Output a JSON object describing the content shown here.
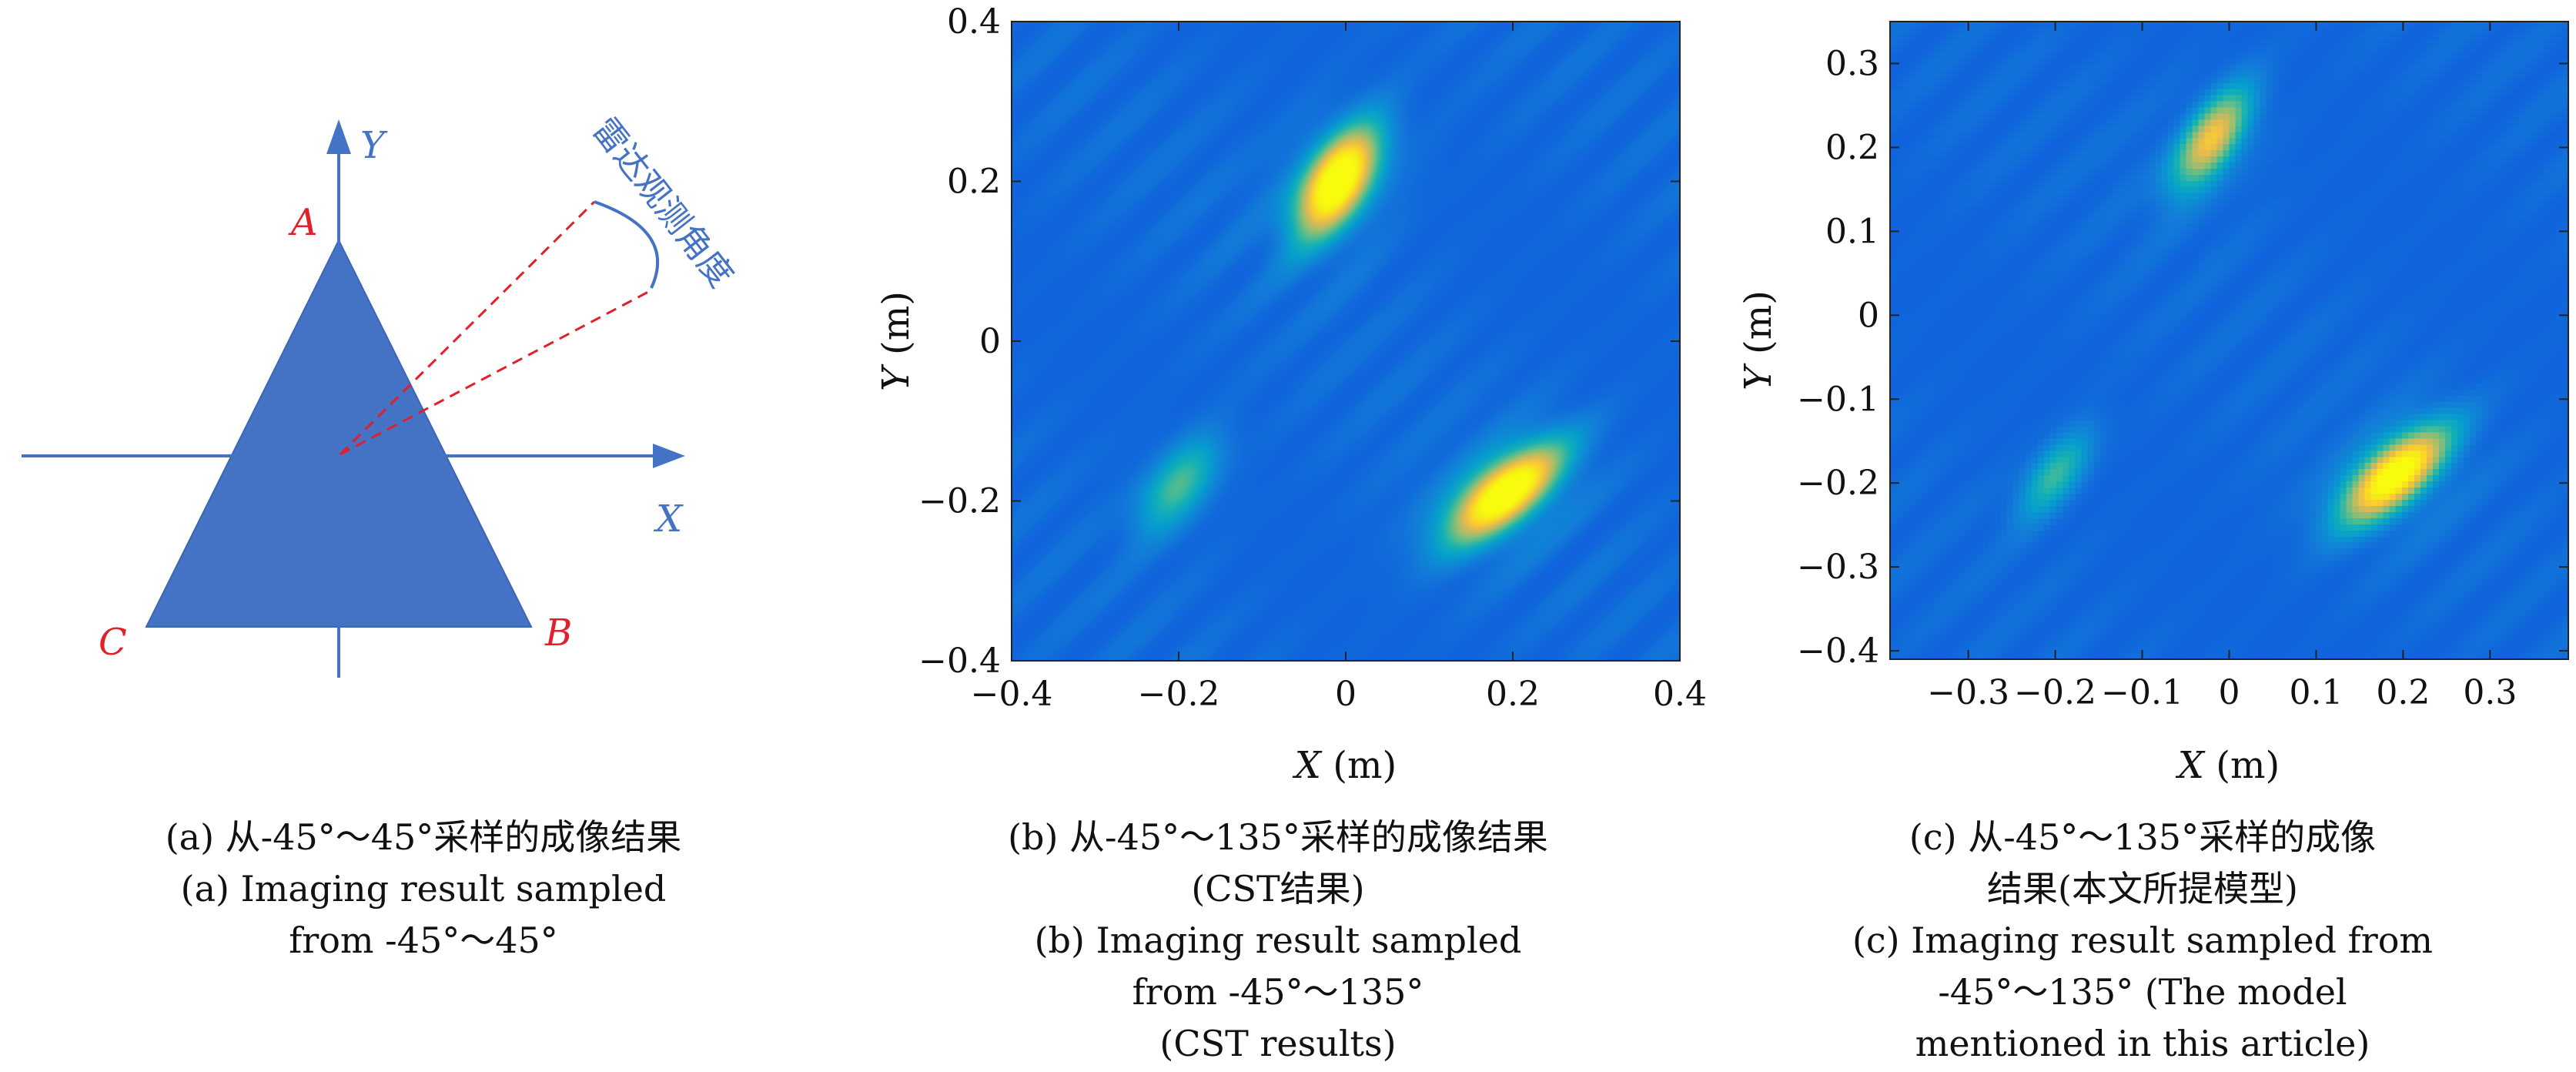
{
  "diagram_a": {
    "axis_y_label": "Y",
    "axis_x_label": "X",
    "vertex_a": "A",
    "vertex_b": "B",
    "vertex_c": "C",
    "angle_label": "雷达观测角度",
    "colors": {
      "triangle": "#4472c4",
      "axis": "#4472c4",
      "vertex": "#e0202a",
      "ray": "#e0202a"
    }
  },
  "captions": {
    "a": [
      "(a) 从-45°～45°采样的成像结果",
      "(a) Imaging result sampled",
      "from -45°～45°"
    ],
    "b": [
      "(b) 从-45°～135°采样的成像结果",
      "(CST结果)",
      "(b) Imaging result sampled",
      "from -45°～135°",
      "(CST results)"
    ],
    "c": [
      "(c) 从-45°～135°采样的成像",
      "结果(本文所提模型)",
      "(c) Imaging result sampled from",
      "-45°～135° (The model",
      "mentioned in this article)"
    ]
  },
  "chart_data": [
    {
      "type": "heatmap",
      "xlabel_var": "X",
      "xlabel_unit": "(m)",
      "ylabel_var": "Y",
      "ylabel_unit": "(m)",
      "xlim": [
        -0.4,
        0.4
      ],
      "ylim": [
        -0.4,
        0.4
      ],
      "xticks": [
        -0.4,
        -0.2,
        0,
        0.2,
        0.4
      ],
      "yticks": [
        -0.4,
        -0.2,
        0,
        0.2,
        0.4
      ],
      "xtick_labels": [
        "−0.4",
        "−0.2",
        "0",
        "0.2",
        "0.4"
      ],
      "ytick_labels": [
        "−0.4",
        "−0.2",
        "0",
        "0.2",
        "0.4"
      ],
      "colormap": "parula",
      "background_level": 0.12,
      "fringe_level": 0.06,
      "blobs": [
        {
          "x": -0.01,
          "y": 0.2,
          "peak": 1.0,
          "orientation_deg": -60,
          "major": 0.1,
          "minor": 0.05
        },
        {
          "x": 0.19,
          "y": -0.19,
          "peak": 0.95,
          "orientation_deg": -40,
          "major": 0.11,
          "minor": 0.05
        },
        {
          "x": -0.2,
          "y": -0.18,
          "peak": 0.35,
          "orientation_deg": -55,
          "major": 0.09,
          "minor": 0.045
        }
      ]
    },
    {
      "type": "heatmap",
      "xlabel_var": "X",
      "xlabel_unit": "(m)",
      "ylabel_var": "Y",
      "ylabel_unit": "(m)",
      "xlim": [
        -0.39,
        0.39
      ],
      "ylim": [
        -0.41,
        0.35
      ],
      "xticks": [
        -0.3,
        -0.2,
        -0.1,
        0,
        0.1,
        0.2,
        0.3
      ],
      "yticks": [
        -0.4,
        -0.3,
        -0.2,
        -0.1,
        0,
        0.1,
        0.2,
        0.3
      ],
      "xtick_labels": [
        "−0.3",
        "−0.2",
        "−0.1",
        "0",
        "0.1",
        "0.2",
        "0.3"
      ],
      "ytick_labels": [
        "−0.4",
        "−0.3",
        "−0.2",
        "−0.1",
        "0",
        "0.1",
        "0.2",
        "0.3"
      ],
      "colormap": "parula",
      "background_level": 0.12,
      "fringe_level": 0.05,
      "blobs": [
        {
          "x": -0.02,
          "y": 0.21,
          "peak": 0.62,
          "orientation_deg": -58,
          "major": 0.09,
          "minor": 0.04
        },
        {
          "x": 0.19,
          "y": -0.19,
          "peak": 0.9,
          "orientation_deg": -42,
          "major": 0.1,
          "minor": 0.045
        },
        {
          "x": -0.2,
          "y": -0.19,
          "peak": 0.32,
          "orientation_deg": -55,
          "major": 0.08,
          "minor": 0.035
        }
      ]
    }
  ]
}
